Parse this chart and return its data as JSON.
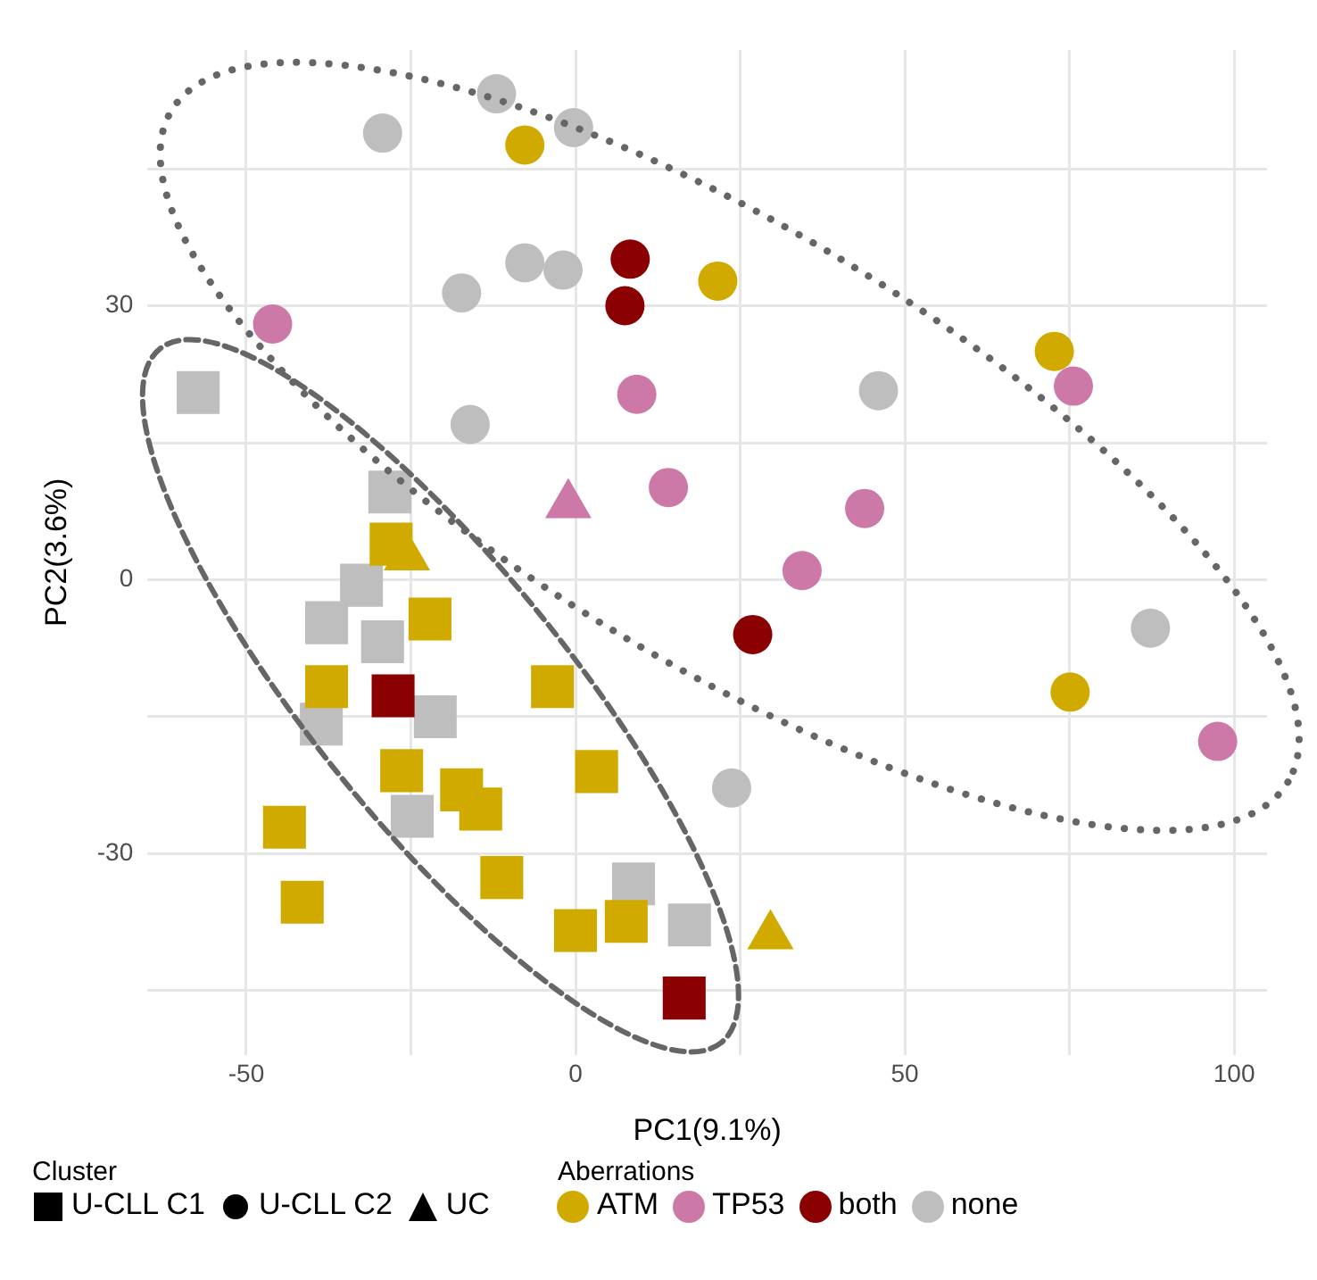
{
  "chart_data": {
    "type": "scatter",
    "xlabel": "PC1(9.1%)",
    "ylabel": "PC2(3.6%)",
    "legend_title": [
      "Cluster",
      "Aberrations"
    ],
    "legend": "bottom",
    "grid": true,
    "xlim": [
      -65,
      105
    ],
    "xticks": [
      -50,
      {
        "value": -25,
        "label": null
      },
      0,
      {
        "value": 25,
        "label": null
      },
      50,
      {
        "value": 75,
        "label": null
      },
      100
    ],
    "ylim": [
      -52,
      58
    ],
    "yticks": [
      {
        "value": -45,
        "label": null
      },
      -30,
      {
        "value": -15,
        "label": null
      },
      0,
      {
        "value": 15,
        "label": null
      },
      30,
      {
        "value": 45,
        "label": null
      }
    ],
    "series": [
      {
        "name": "U-CLL C1",
        "marker": "square",
        "color": "#000000"
      },
      {
        "name": "U-CLL C2",
        "marker": "circle",
        "color": "#000000"
      },
      {
        "name": "UC",
        "marker": "triangle",
        "color": "#000000"
      },
      {
        "name": "ATM",
        "color": "#d1aa00",
        "x": [
          -28,
          -22.1,
          -37.8,
          -3.5,
          -26.4,
          -17.3,
          -14.4,
          -44.2,
          3.2,
          -11.2,
          -41.5,
          0,
          7.7,
          -7.7,
          21.6,
          72.7,
          75.1,
          -25.6,
          29.6
        ],
        "values": [
          3.9,
          -4.3,
          -11.7,
          -11.7,
          -20.9,
          -23,
          -25.1,
          -27.1,
          -21,
          -32.6,
          -35.3,
          -38.4,
          -37.4,
          47.6,
          32.7,
          25,
          -12.3,
          2.5,
          -39
        ],
        "marker": [
          "square",
          "square",
          "square",
          "square",
          "square",
          "square",
          "square",
          "square",
          "square",
          "square",
          "square",
          "square",
          "square",
          "circle",
          "circle",
          "circle",
          "circle",
          "triangle",
          "triangle"
        ]
      },
      {
        "name": "TP53",
        "color": "#cc79a7",
        "x": [
          -46,
          9.3,
          14.1,
          43.9,
          34.4,
          75.6,
          97.5,
          -1.1
        ],
        "values": [
          28,
          20.3,
          10.1,
          7.8,
          1,
          21.2,
          -17.7,
          8.2
        ],
        "marker": [
          "circle",
          "circle",
          "circle",
          "circle",
          "circle",
          "circle",
          "circle",
          "triangle"
        ]
      },
      {
        "name": "both",
        "color": "#8b0000",
        "x": [
          -27.7,
          16.5,
          8.3,
          7.5,
          26.9
        ],
        "values": [
          -12.7,
          -45.8,
          35.1,
          30,
          -6
        ],
        "marker": [
          "square",
          "square",
          "circle",
          "circle",
          "circle"
        ]
      },
      {
        "name": "none",
        "color": "#bebebe",
        "x": [
          -57.3,
          -28.2,
          -32.5,
          -37.8,
          -29.3,
          -38.6,
          -21.3,
          -24.8,
          8.8,
          17.3,
          -29.3,
          -12,
          -0.3,
          -17.3,
          -7.7,
          -1.9,
          -16,
          46,
          87.3,
          23.7
        ],
        "values": [
          20.5,
          9.6,
          -0.6,
          -4.7,
          -6.8,
          -15.8,
          -15,
          -25.9,
          -33.3,
          -37.8,
          48.9,
          53.2,
          49.5,
          31.4,
          34.7,
          33.9,
          17,
          20.7,
          -5.3,
          -22.8
        ],
        "marker": [
          "square",
          "square",
          "square",
          "square",
          "square",
          "square",
          "square",
          "square",
          "square",
          "square",
          "circle",
          "circle",
          "circle",
          "circle",
          "circle",
          "circle",
          "circle",
          "circle",
          "circle",
          "circle"
        ]
      }
    ]
  }
}
